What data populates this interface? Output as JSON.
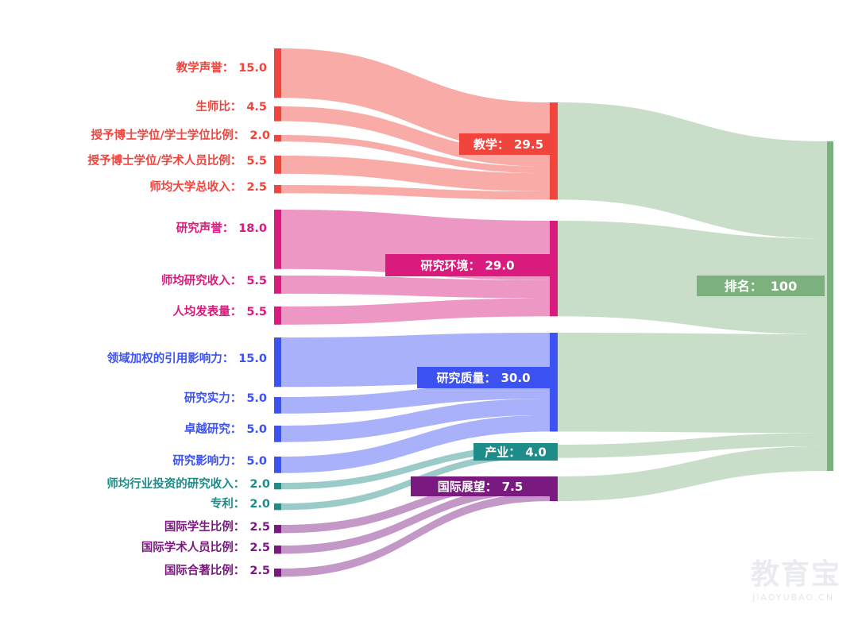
{
  "diagram": {
    "type": "sankey",
    "colors": {
      "teaching": "#f0443c",
      "research_env": "#d81b7c",
      "research_quality": "#3d52f2",
      "industry": "#1e8c88",
      "international": "#7a1a80",
      "total": "#7cb07c"
    },
    "sources": [
      {
        "id": "s1",
        "label": "教学声誉：",
        "value": "15.0",
        "group": "teaching"
      },
      {
        "id": "s2",
        "label": "生师比：",
        "value": "4.5",
        "group": "teaching"
      },
      {
        "id": "s3",
        "label": "授予博士学位/学士学位比例：",
        "value": "2.0",
        "group": "teaching"
      },
      {
        "id": "s4",
        "label": "授予博士学位/学术人员比例：",
        "value": "5.5",
        "group": "teaching"
      },
      {
        "id": "s5",
        "label": "师均大学总收入：",
        "value": "2.5",
        "group": "teaching"
      },
      {
        "id": "s6",
        "label": "研究声誉：",
        "value": "18.0",
        "group": "research_env"
      },
      {
        "id": "s7",
        "label": "师均研究收入：",
        "value": "5.5",
        "group": "research_env"
      },
      {
        "id": "s8",
        "label": "人均发表量：",
        "value": "5.5",
        "group": "research_env"
      },
      {
        "id": "s9",
        "label": "领域加权的引用影响力：",
        "value": "15.0",
        "group": "research_quality"
      },
      {
        "id": "s10",
        "label": "研究实力：",
        "value": "5.0",
        "group": "research_quality"
      },
      {
        "id": "s11",
        "label": "卓越研究：",
        "value": "5.0",
        "group": "research_quality"
      },
      {
        "id": "s12",
        "label": "研究影响力：",
        "value": "5.0",
        "group": "research_quality"
      },
      {
        "id": "s13",
        "label": "师均行业投资的研究收入：",
        "value": "2.0",
        "group": "industry"
      },
      {
        "id": "s14",
        "label": "专利：",
        "value": "2.0",
        "group": "industry"
      },
      {
        "id": "s15",
        "label": "国际学生比例：",
        "value": "2.5",
        "group": "international"
      },
      {
        "id": "s16",
        "label": "国际学术人员比例：",
        "value": "2.5",
        "group": "international"
      },
      {
        "id": "s17",
        "label": "国际合著比例：",
        "value": "2.5",
        "group": "international"
      }
    ],
    "categories": [
      {
        "id": "teaching",
        "label": "教学：",
        "value": "29.5"
      },
      {
        "id": "research_env",
        "label": "研究环境：",
        "value": "29.0"
      },
      {
        "id": "research_quality",
        "label": "研究质量：",
        "value": "30.0"
      },
      {
        "id": "industry",
        "label": "产业：",
        "value": "4.0"
      },
      {
        "id": "international",
        "label": "国际展望：",
        "value": "7.5"
      }
    ],
    "total": {
      "label": "排名：",
      "value": "100"
    }
  },
  "watermark": {
    "name": "教育宝",
    "url": "JIAOYUBAO.CN"
  }
}
